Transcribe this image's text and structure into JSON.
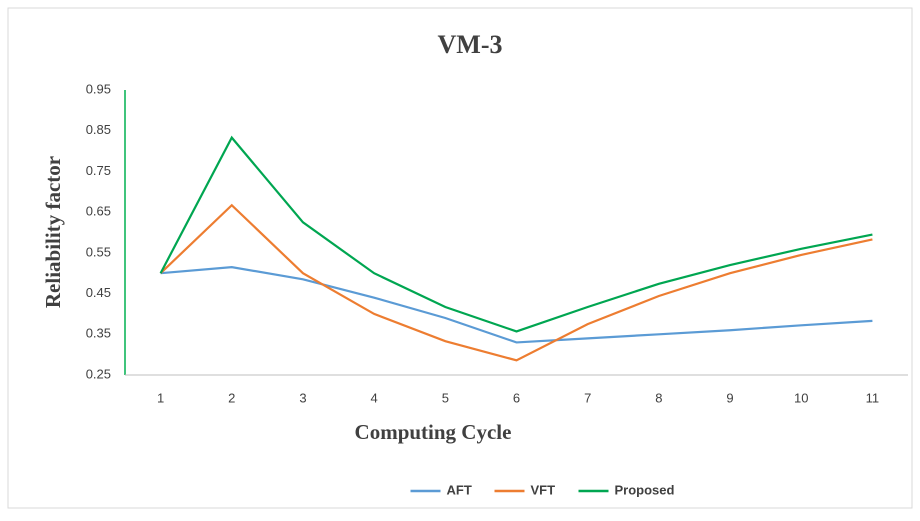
{
  "chart_data": {
    "type": "line",
    "title": "VM-3",
    "x_label": "Computing Cycle",
    "y_label": "Reliability factor",
    "categories": [
      "1",
      "2",
      "3",
      "4",
      "5",
      "6",
      "7",
      "8",
      "9",
      "10",
      "11"
    ],
    "series": [
      {
        "name": "AFT",
        "color": "#5b9bd5",
        "values": [
          0.5,
          0.515,
          0.485,
          0.44,
          0.39,
          0.33,
          0.34,
          0.35,
          0.36,
          0.372,
          0.383
        ]
      },
      {
        "name": "VFT",
        "color": "#ed7d31",
        "values": [
          0.5,
          0.667,
          0.5,
          0.4,
          0.333,
          0.286,
          0.375,
          0.444,
          0.5,
          0.545,
          0.583
        ]
      },
      {
        "name": "Proposed",
        "color": "#00a651",
        "values": [
          0.5,
          0.833,
          0.625,
          0.5,
          0.417,
          0.357,
          0.417,
          0.474,
          0.52,
          0.56,
          0.595
        ]
      }
    ],
    "ylim": [
      0.25,
      0.95
    ],
    "yticks": [
      0.25,
      0.35,
      0.45,
      0.55,
      0.65,
      0.75,
      0.85,
      0.95
    ],
    "grid": false,
    "legend": "bottom"
  }
}
